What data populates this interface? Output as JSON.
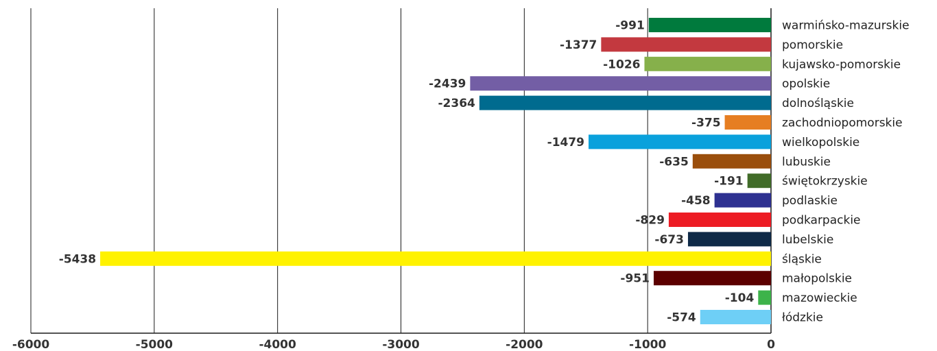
{
  "chart_data": {
    "type": "bar",
    "orientation": "horizontal",
    "xlim": [
      -6000,
      0
    ],
    "xticks": [
      "-6000",
      "-5000",
      "-4000",
      "-3000",
      "-2000",
      "-1000",
      "0"
    ],
    "grid": true,
    "categories": [
      "warmińsko-mazurskie",
      "pomorskie",
      "kujawsko-pomorskie",
      "opolskie",
      "dolnośląskie",
      "zachodniopomorskie",
      "wielkopolskie",
      "lubuskie",
      "świętokrzyskie",
      "podlaskie",
      "podkarpackie",
      "lubelskie",
      "śląskie",
      "małopolskie",
      "mazowieckie",
      "łódzkie"
    ],
    "values": [
      -991,
      -1377,
      -1026,
      -2439,
      -2364,
      -375,
      -1479,
      -635,
      -191,
      -458,
      -829,
      -673,
      -5438,
      -951,
      -104,
      -574
    ],
    "value_labels": [
      "-991",
      "-1377",
      "-1026",
      "-2439",
      "-2364",
      "-375",
      "-1479",
      "-635",
      "-191",
      "-458",
      "-829",
      "-673",
      "-5438",
      "-951",
      "-104",
      "-574"
    ],
    "colors": [
      "#007a3d",
      "#c3393f",
      "#86b04b",
      "#735ea5",
      "#006b8f",
      "#e67e22",
      "#0aa1dc",
      "#9a4e0c",
      "#416c29",
      "#2e3191",
      "#ed1c24",
      "#0f2a47",
      "#fff200",
      "#5c0000",
      "#3db34a",
      "#6ecff6"
    ]
  }
}
